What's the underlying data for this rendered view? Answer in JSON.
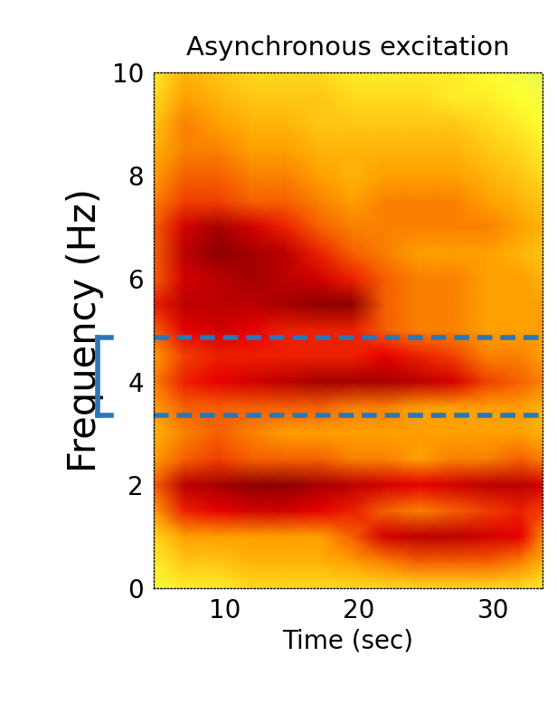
{
  "chart_data": {
    "type": "heatmap",
    "title": "Asynchronous excitation",
    "x_label": "Time (sec)",
    "y_label": "Frequency (Hz)",
    "xlim": [
      4.7,
      33.7
    ],
    "ylim": [
      0,
      10
    ],
    "xticks": [
      10,
      20,
      30
    ],
    "yticks": [
      0,
      2,
      4,
      6,
      8,
      10
    ],
    "highlight_band": [
      3.35,
      4.85
    ],
    "color": "#2e75b6",
    "color_range": [
      0,
      1
    ],
    "time": [
      4.7,
      7,
      9.5,
      12,
      14.5,
      17,
      19.5,
      22,
      24.5,
      27,
      29.5,
      32,
      33.7
    ],
    "frequency": [
      0,
      0.5,
      1,
      1.5,
      2,
      2.5,
      3,
      3.5,
      4,
      4.5,
      5,
      5.5,
      6,
      6.5,
      7,
      7.5,
      8,
      8.5,
      9,
      9.5,
      10
    ],
    "cells": [
      [
        0.2,
        0.3,
        0.3,
        0.35,
        0.35,
        0.35,
        0.35,
        0.35,
        0.35,
        0.35,
        0.35,
        0.35,
        0.3
      ],
      [
        0.3,
        0.4,
        0.4,
        0.45,
        0.45,
        0.45,
        0.5,
        0.55,
        0.6,
        0.6,
        0.6,
        0.55,
        0.45
      ],
      [
        0.35,
        0.5,
        0.5,
        0.5,
        0.5,
        0.5,
        0.6,
        0.8,
        0.85,
        0.85,
        0.8,
        0.75,
        0.55
      ],
      [
        0.5,
        0.7,
        0.75,
        0.8,
        0.8,
        0.75,
        0.7,
        0.6,
        0.55,
        0.6,
        0.65,
        0.7,
        0.65
      ],
      [
        0.6,
        0.85,
        0.9,
        0.95,
        0.95,
        0.9,
        0.85,
        0.8,
        0.75,
        0.8,
        0.85,
        0.85,
        0.8
      ],
      [
        0.5,
        0.6,
        0.65,
        0.6,
        0.6,
        0.6,
        0.55,
        0.55,
        0.5,
        0.55,
        0.55,
        0.6,
        0.55
      ],
      [
        0.45,
        0.55,
        0.6,
        0.55,
        0.5,
        0.5,
        0.5,
        0.5,
        0.5,
        0.5,
        0.5,
        0.5,
        0.45
      ],
      [
        0.5,
        0.6,
        0.6,
        0.6,
        0.6,
        0.6,
        0.55,
        0.55,
        0.5,
        0.5,
        0.5,
        0.5,
        0.45
      ],
      [
        0.55,
        0.7,
        0.75,
        0.8,
        0.85,
        0.9,
        0.9,
        0.9,
        0.85,
        0.8,
        0.65,
        0.6,
        0.55
      ],
      [
        0.5,
        0.65,
        0.7,
        0.7,
        0.7,
        0.7,
        0.7,
        0.75,
        0.7,
        0.65,
        0.55,
        0.55,
        0.5
      ],
      [
        0.6,
        0.75,
        0.8,
        0.75,
        0.7,
        0.7,
        0.7,
        0.6,
        0.55,
        0.55,
        0.5,
        0.5,
        0.5
      ],
      [
        0.7,
        0.85,
        0.85,
        0.85,
        0.9,
        0.95,
        0.95,
        0.6,
        0.55,
        0.55,
        0.5,
        0.5,
        0.5
      ],
      [
        0.6,
        0.8,
        0.85,
        0.9,
        0.85,
        0.8,
        0.7,
        0.6,
        0.55,
        0.55,
        0.5,
        0.5,
        0.45
      ],
      [
        0.6,
        0.85,
        0.95,
        0.9,
        0.85,
        0.7,
        0.6,
        0.55,
        0.5,
        0.5,
        0.5,
        0.45,
        0.4
      ],
      [
        0.6,
        0.8,
        0.9,
        0.8,
        0.7,
        0.6,
        0.55,
        0.55,
        0.55,
        0.55,
        0.55,
        0.5,
        0.45
      ],
      [
        0.55,
        0.65,
        0.65,
        0.6,
        0.6,
        0.55,
        0.5,
        0.55,
        0.55,
        0.55,
        0.5,
        0.45,
        0.4
      ],
      [
        0.5,
        0.6,
        0.6,
        0.55,
        0.55,
        0.5,
        0.45,
        0.5,
        0.5,
        0.5,
        0.45,
        0.4,
        0.35
      ],
      [
        0.45,
        0.55,
        0.55,
        0.5,
        0.5,
        0.45,
        0.45,
        0.45,
        0.45,
        0.45,
        0.4,
        0.35,
        0.3
      ],
      [
        0.4,
        0.55,
        0.5,
        0.45,
        0.45,
        0.4,
        0.4,
        0.4,
        0.4,
        0.4,
        0.35,
        0.3,
        0.25
      ],
      [
        0.35,
        0.5,
        0.45,
        0.4,
        0.4,
        0.4,
        0.35,
        0.35,
        0.35,
        0.3,
        0.3,
        0.25,
        0.2
      ],
      [
        0.3,
        0.45,
        0.4,
        0.35,
        0.35,
        0.35,
        0.3,
        0.3,
        0.3,
        0.3,
        0.25,
        0.2,
        0.15
      ]
    ]
  }
}
